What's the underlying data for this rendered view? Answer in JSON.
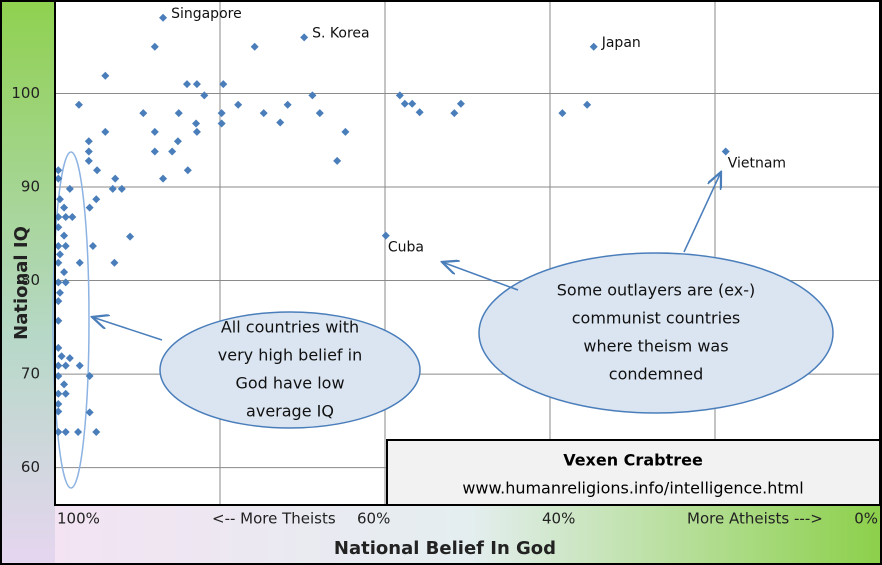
{
  "chart_data": {
    "type": "scatter",
    "xlabel": "National Belief In God",
    "ylabel": "National IQ",
    "xlim": [
      100,
      0
    ],
    "ylim": [
      56,
      110
    ],
    "xticks": [
      {
        "value": 100,
        "label": "100%"
      },
      {
        "value": 80,
        "label": "<-- More Theists"
      },
      {
        "value": 60,
        "label": "60%"
      },
      {
        "value": 40,
        "label": "40%"
      },
      {
        "value": 20,
        "label": "More Atheists --->"
      },
      {
        "value": 0,
        "label": "0%"
      }
    ],
    "yticks": [
      60,
      70,
      80,
      90,
      100
    ],
    "grid": true,
    "color": "#4a7ebb",
    "x": [
      86.9,
      69.8,
      34.7,
      18.7,
      59.9,
      87.9,
      75.8,
      93.9,
      97.1,
      84.0,
      82.8,
      79.6,
      81.9,
      89.3,
      85.0,
      79.8,
      79.8,
      77.8,
      74.7,
      71.8,
      68.8,
      67.9,
      72.7,
      64.8,
      82.9,
      82.8,
      87.9,
      85.1,
      85.8,
      87.9,
      86.9,
      83.9,
      65.8,
      95.9,
      95.9,
      95.9,
      93.9,
      94.9,
      92.7,
      93.0,
      91.9,
      95.0,
      95.8,
      90.9,
      92.8,
      95.4,
      97.0,
      58.2,
      57.6,
      56.7,
      55.8,
      50.8,
      51.6,
      38.5,
      35.5,
      99.6,
      99.6,
      98.2,
      99.4,
      98.9,
      99.6,
      98.7,
      97.9,
      99.6,
      98.9,
      99.6,
      98.7,
      99.4,
      99.6,
      98.9,
      99.6,
      98.7,
      99.4,
      99.6,
      99.6,
      99.6,
      99.2,
      99.6,
      98.7,
      99.6,
      98.9,
      99.6,
      98.7,
      99.6,
      99.6,
      99.6,
      98.7,
      97.2,
      95.0,
      95.8,
      97.0,
      95.8,
      98.2
    ],
    "y": [
      108.1,
      106.0,
      105.0,
      93.8,
      84.8,
      105.0,
      105.0,
      101.9,
      98.8,
      101.0,
      101.0,
      101.0,
      99.8,
      97.9,
      97.9,
      97.9,
      96.8,
      98.8,
      97.9,
      98.8,
      99.8,
      97.9,
      96.9,
      95.9,
      96.8,
      95.9,
      95.9,
      94.9,
      93.8,
      93.8,
      90.9,
      91.8,
      92.8,
      94.9,
      93.8,
      92.8,
      95.9,
      91.8,
      90.9,
      89.8,
      89.8,
      88.7,
      87.8,
      84.7,
      81.9,
      83.7,
      81.9,
      99.8,
      98.9,
      98.9,
      98.0,
      98.9,
      97.9,
      97.9,
      98.8,
      91.8,
      90.9,
      89.8,
      88.7,
      87.8,
      86.8,
      86.8,
      86.8,
      85.7,
      84.8,
      83.7,
      83.7,
      82.8,
      81.9,
      80.9,
      79.8,
      79.8,
      78.7,
      77.8,
      75.7,
      72.8,
      71.9,
      70.9,
      70.9,
      69.8,
      68.9,
      67.9,
      67.9,
      66.8,
      66.0,
      63.8,
      63.8,
      63.8,
      63.8,
      65.9,
      70.9,
      69.8,
      71.7
    ],
    "point_labels": [
      "Singapore",
      "S. Korea",
      "Japan",
      "Vietnam",
      "Cuba",
      null,
      null,
      null,
      null,
      null,
      null,
      null,
      null,
      null,
      null,
      null,
      null,
      null,
      null,
      null,
      null,
      null,
      null,
      null,
      null,
      null,
      null,
      null,
      null,
      null,
      null,
      null,
      null,
      null,
      null,
      null,
      null,
      null,
      null,
      null,
      null,
      null,
      null,
      null,
      null,
      null,
      null,
      null,
      null,
      null,
      null,
      null,
      null,
      null,
      null,
      null,
      null,
      null,
      null,
      null,
      null,
      null,
      null,
      null,
      null,
      null,
      null,
      null,
      null,
      null,
      null,
      null,
      null,
      null,
      null,
      null,
      null,
      null,
      null,
      null,
      null,
      null,
      null,
      null,
      null,
      null,
      null,
      null,
      null,
      null,
      null,
      null,
      null
    ],
    "annotations": [
      {
        "lines": [
          "All countries with",
          "very high belief in",
          "God have  low",
          "average IQ"
        ]
      },
      {
        "lines": [
          "Some outlayers are (ex-)",
          "communist countries",
          "where theism was",
          "condemned"
        ]
      }
    ],
    "source": [
      "Vexen Crabtree",
      "www.humanreligions.info/intelligence.html"
    ]
  }
}
